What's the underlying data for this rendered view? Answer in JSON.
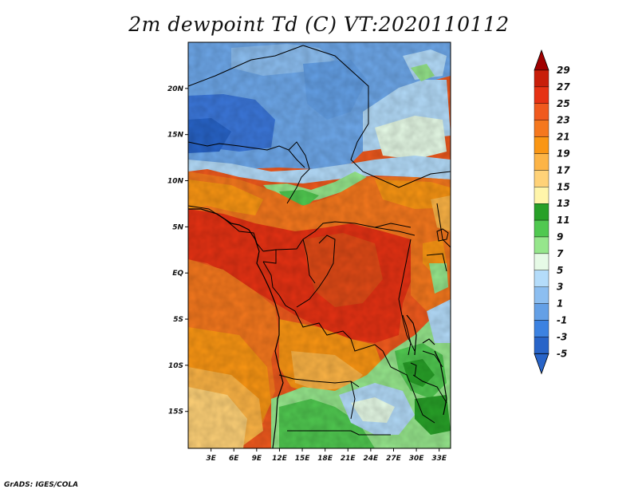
{
  "title": "2m dewpoint Td (C) VT:2020110112",
  "credit": "GrADS: IGES/COLA",
  "map": {
    "lat_range": [
      -19,
      25
    ],
    "lon_range": [
      0,
      34.5
    ],
    "lat_ticks": [
      {
        "value": 20,
        "label": "20N"
      },
      {
        "value": 15,
        "label": "15N"
      },
      {
        "value": 10,
        "label": "10N"
      },
      {
        "value": 5,
        "label": "5N"
      },
      {
        "value": 0,
        "label": "EQ"
      },
      {
        "value": -5,
        "label": "5S"
      },
      {
        "value": -10,
        "label": "10S"
      },
      {
        "value": -15,
        "label": "15S"
      }
    ],
    "lon_ticks": [
      {
        "value": 3,
        "label": "3E"
      },
      {
        "value": 6,
        "label": "6E"
      },
      {
        "value": 9,
        "label": "9E"
      },
      {
        "value": 12,
        "label": "12E"
      },
      {
        "value": 15,
        "label": "15E"
      },
      {
        "value": 18,
        "label": "18E"
      },
      {
        "value": 21,
        "label": "21E"
      },
      {
        "value": 24,
        "label": "24E"
      },
      {
        "value": 27,
        "label": "27E"
      },
      {
        "value": 30,
        "label": "30E"
      },
      {
        "value": 33,
        "label": "33E"
      }
    ]
  },
  "colorbar": {
    "levels": [
      {
        "label": "29",
        "color": "#a00000"
      },
      {
        "label": "27",
        "color": "#c81e0a"
      },
      {
        "label": "25",
        "color": "#e63214"
      },
      {
        "label": "23",
        "color": "#f05a1e"
      },
      {
        "label": "21",
        "color": "#f5781e"
      },
      {
        "label": "19",
        "color": "#fa9614"
      },
      {
        "label": "17",
        "color": "#fcb446"
      },
      {
        "label": "15",
        "color": "#ffd278"
      },
      {
        "label": "13",
        "color": "#fff5aa"
      },
      {
        "label": "11",
        "color": "#28a028"
      },
      {
        "label": "9",
        "color": "#50c850"
      },
      {
        "label": "7",
        "color": "#96e68c"
      },
      {
        "label": "5",
        "color": "#e6fae6"
      },
      {
        "label": "3",
        "color": "#b4dcfa"
      },
      {
        "label": "1",
        "color": "#8cbef0"
      },
      {
        "label": "-1",
        "color": "#64a0e6"
      },
      {
        "label": "-3",
        "color": "#3c82e1"
      },
      {
        "label": "-5",
        "color": "#2864c8"
      }
    ]
  }
}
